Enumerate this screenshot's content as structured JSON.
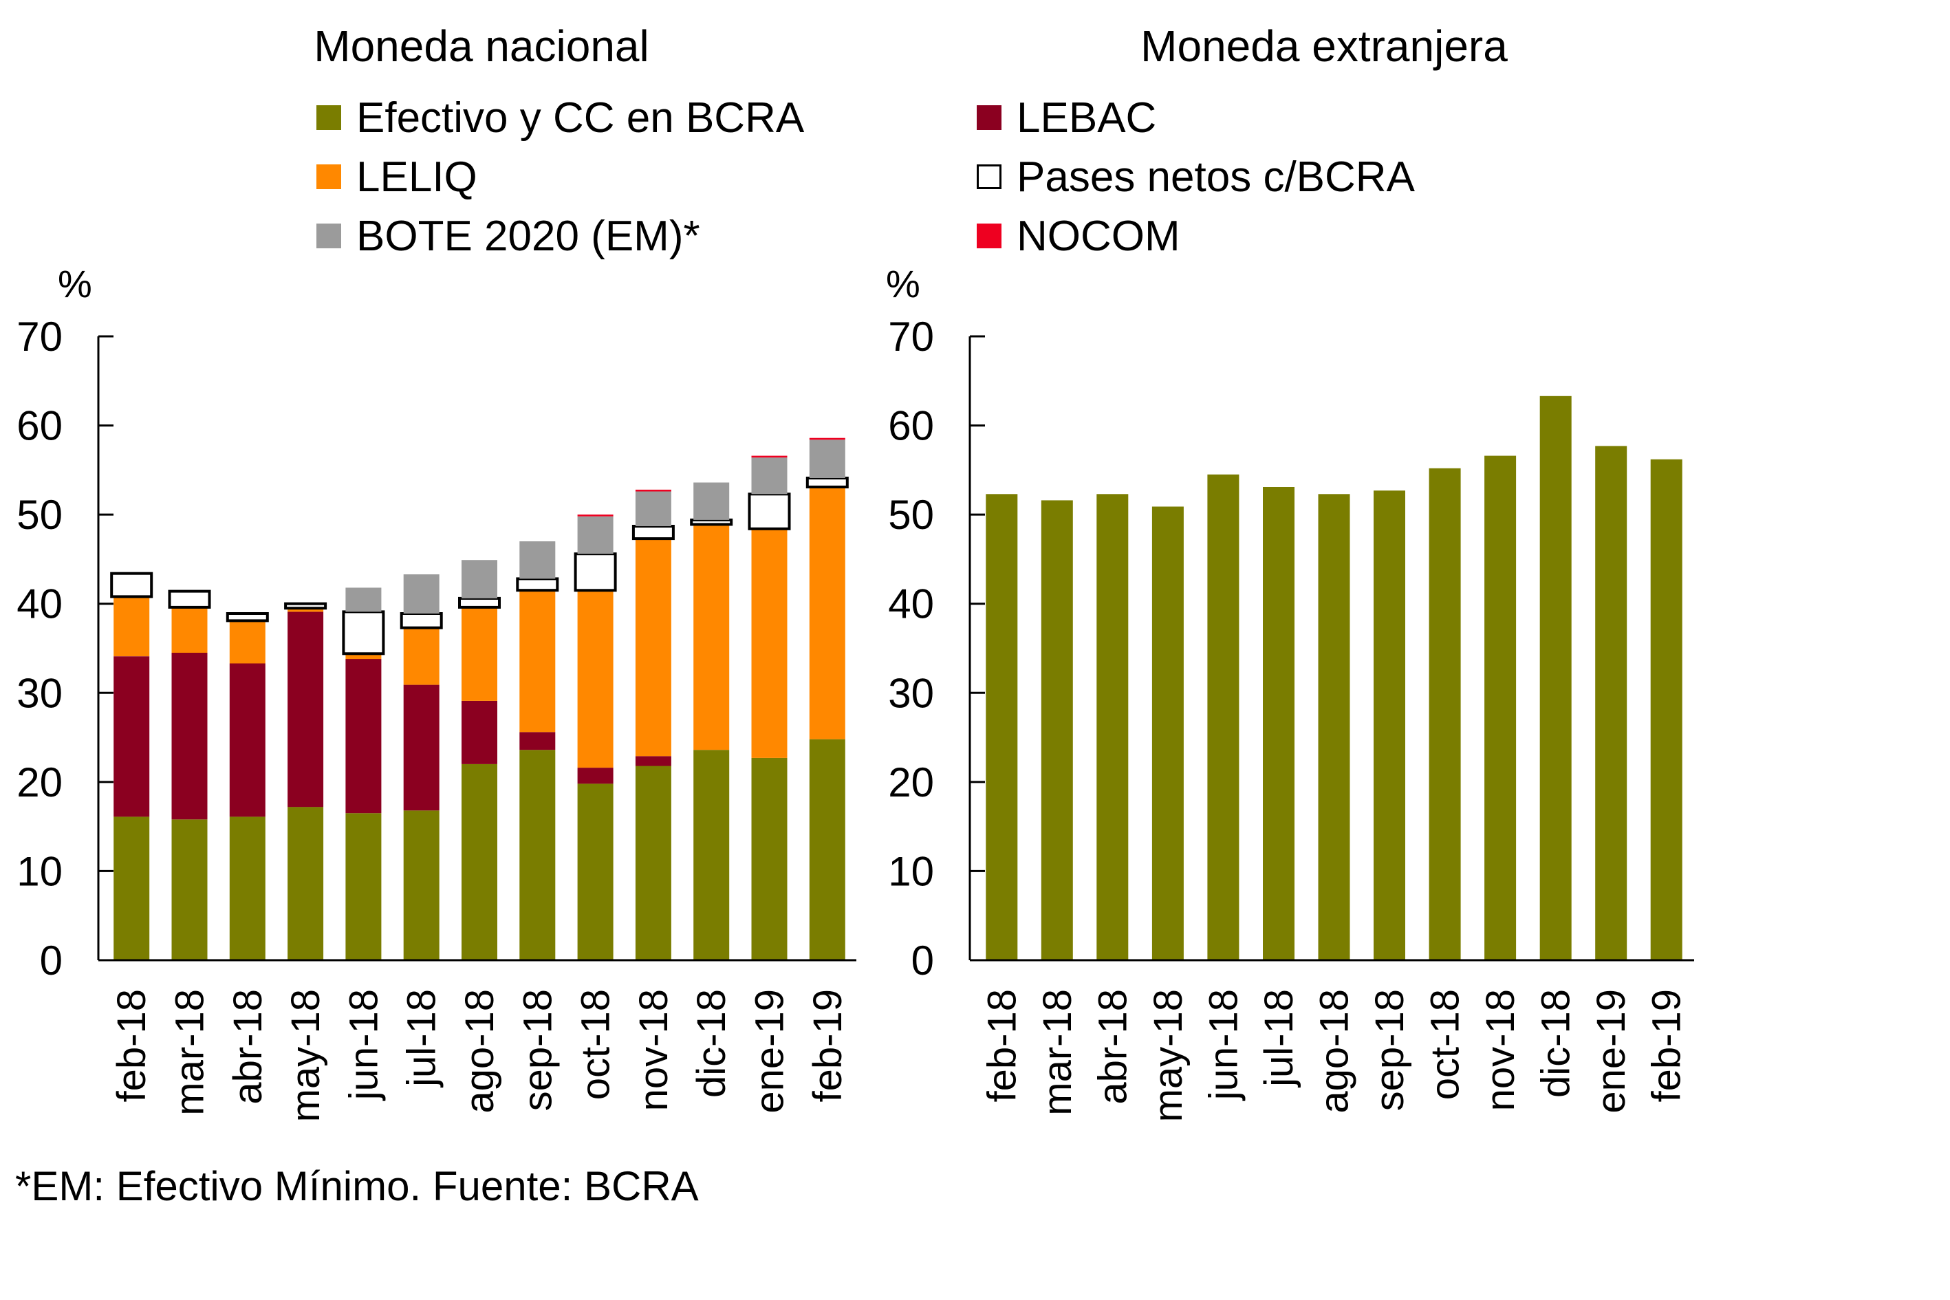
{
  "chart_data": [
    {
      "type": "bar",
      "stacked": true,
      "title": "Moneda nacional",
      "ylabel": "%",
      "xlabel": "",
      "ylim": [
        0,
        70
      ],
      "yticks": [
        0,
        10,
        20,
        30,
        40,
        50,
        60,
        70
      ],
      "grid": false,
      "categories": [
        "feb-18",
        "mar-18",
        "abr-18",
        "may-18",
        "jun-18",
        "jul-18",
        "ago-18",
        "sep-18",
        "oct-18",
        "nov-18",
        "dic-18",
        "ene-19",
        "feb-19"
      ],
      "series": [
        {
          "name": "Efectivo y CC en BCRA",
          "color": "#7a7d00",
          "values": [
            16.1,
            15.8,
            16.1,
            17.2,
            16.5,
            16.8,
            22.0,
            23.6,
            19.8,
            21.8,
            23.6,
            22.7,
            24.8
          ]
        },
        {
          "name": "LEBAC",
          "color": "#8b0020",
          "values": [
            18.0,
            18.7,
            17.2,
            21.9,
            17.3,
            14.1,
            7.1,
            2.0,
            1.8,
            1.1,
            0.0,
            0.0,
            0.0
          ]
        },
        {
          "name": "LELIQ",
          "color": "#ff8800",
          "values": [
            6.7,
            5.1,
            4.8,
            0.4,
            0.6,
            6.4,
            10.5,
            15.9,
            19.9,
            24.4,
            25.3,
            25.7,
            28.3
          ]
        },
        {
          "name": "Pases netos c/BCRA",
          "color": "#ffffff",
          "outline": "#000000",
          "values": [
            2.6,
            1.8,
            0.8,
            0.5,
            4.7,
            1.6,
            1.0,
            1.3,
            4.1,
            1.4,
            0.5,
            3.9,
            1.0
          ]
        },
        {
          "name": "BOTE 2020 (EM)*",
          "color": "#9b9b9b",
          "values": [
            0.0,
            0.0,
            0.0,
            0.0,
            2.7,
            4.4,
            4.3,
            4.2,
            4.2,
            3.9,
            4.2,
            4.1,
            4.3
          ]
        },
        {
          "name": "NOCOM",
          "color": "#ee0020",
          "values": [
            0.0,
            0.0,
            0.0,
            0.0,
            0.0,
            0.0,
            0.0,
            0.0,
            0.2,
            0.2,
            0.0,
            0.2,
            0.2
          ]
        }
      ]
    },
    {
      "type": "bar",
      "stacked": false,
      "title": "Moneda extranjera",
      "ylabel": "%",
      "xlabel": "",
      "ylim": [
        0,
        70
      ],
      "yticks": [
        0,
        10,
        20,
        30,
        40,
        50,
        60,
        70
      ],
      "grid": false,
      "categories": [
        "feb-18",
        "mar-18",
        "abr-18",
        "may-18",
        "jun-18",
        "jul-18",
        "ago-18",
        "sep-18",
        "oct-18",
        "nov-18",
        "dic-18",
        "ene-19",
        "feb-19"
      ],
      "series": [
        {
          "name": "Efectivo y CC en BCRA",
          "color": "#7a7d00",
          "values": [
            52.3,
            51.6,
            52.3,
            50.9,
            54.5,
            53.1,
            52.3,
            52.7,
            55.2,
            56.6,
            63.3,
            57.7,
            56.2
          ]
        }
      ]
    }
  ],
  "legend_left": [
    {
      "label": "Efectivo y CC en BCRA",
      "color": "#7a7d00"
    },
    {
      "label": "LELIQ",
      "color": "#ff8800"
    },
    {
      "label": "BOTE 2020 (EM)*",
      "color": "#9b9b9b"
    }
  ],
  "legend_right": [
    {
      "label": "LEBAC",
      "color": "#8b0020"
    },
    {
      "label": "Pases netos c/BCRA",
      "color": "#ffffff"
    },
    {
      "label": "NOCOM",
      "color": "#ee0020"
    }
  ],
  "footer": "*EM: Efectivo Mínimo. Fuente: BCRA"
}
